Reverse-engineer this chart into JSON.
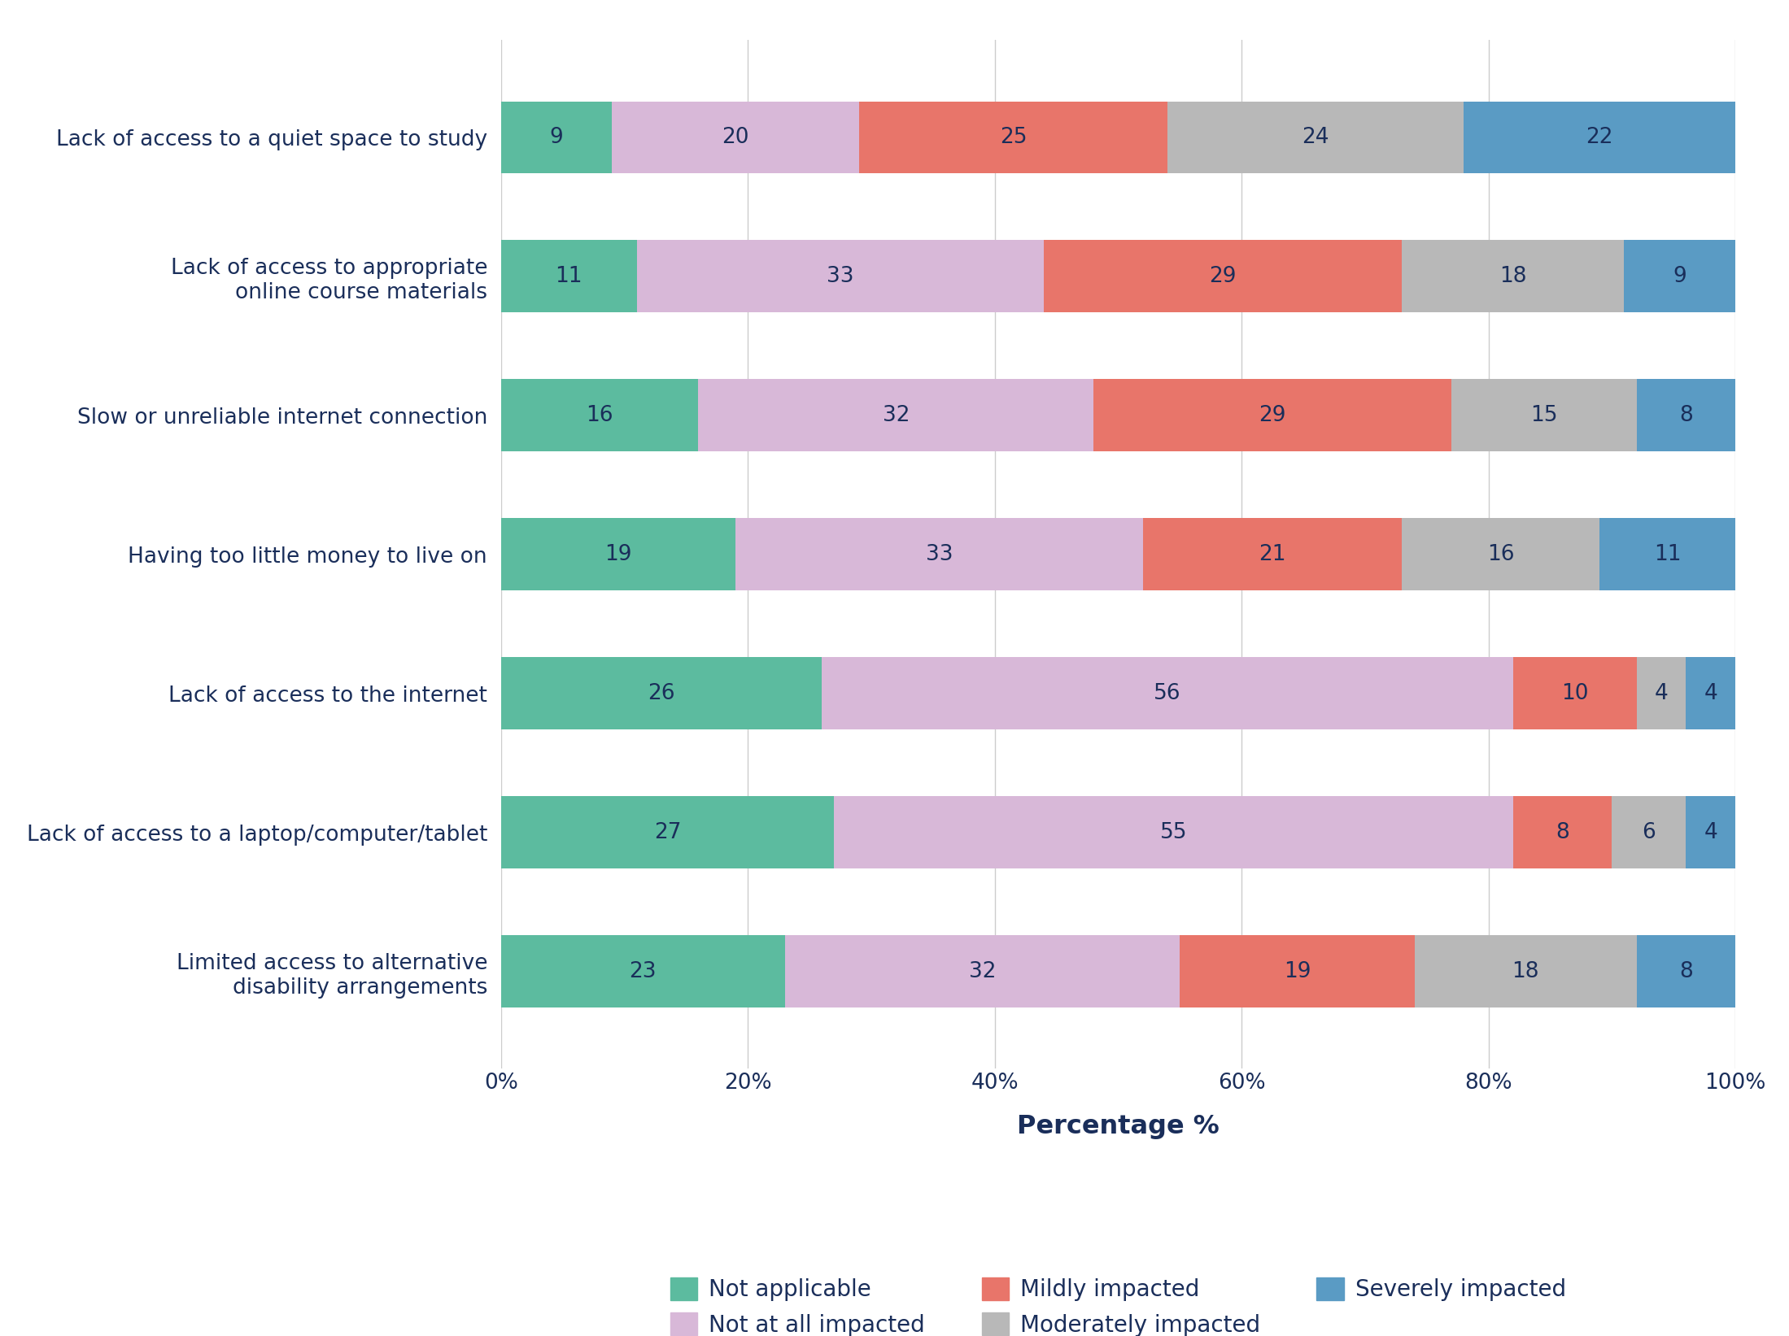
{
  "categories": [
    "Lack of access to a quiet space to study",
    "Lack of access to appropriate\nonline course materials",
    "Slow or unreliable internet connection",
    "Having too little money to live on",
    "Lack of access to the internet",
    "Lack of access to a laptop/computer/tablet",
    "Limited access to alternative\ndisability arrangements"
  ],
  "series": {
    "Not applicable": [
      9,
      11,
      16,
      19,
      26,
      27,
      23
    ],
    "Not at all impacted": [
      20,
      33,
      32,
      33,
      56,
      55,
      32
    ],
    "Mildly impacted": [
      25,
      29,
      29,
      21,
      10,
      8,
      19
    ],
    "Moderately impacted": [
      24,
      18,
      15,
      16,
      4,
      6,
      18
    ],
    "Severely impacted": [
      22,
      9,
      8,
      11,
      4,
      4,
      8
    ]
  },
  "colors": {
    "Not applicable": "#5cbb9f",
    "Not at all impacted": "#d8b8d8",
    "Mildly impacted": "#e8756a",
    "Moderately impacted": "#b8b8b8",
    "Severely impacted": "#5a9bc4"
  },
  "xlabel": "Percentage %",
  "xlim": [
    0,
    100
  ],
  "xticks": [
    0,
    20,
    40,
    60,
    80,
    100
  ],
  "xtick_labels": [
    "0%",
    "20%",
    "40%",
    "60%",
    "80%",
    "100%"
  ],
  "background_color": "#ffffff",
  "label_color": "#1a2e5a",
  "bar_text_color": "#1a2e5a",
  "bar_height": 0.52,
  "figsize": [
    21.99,
    16.43
  ],
  "dpi": 100
}
